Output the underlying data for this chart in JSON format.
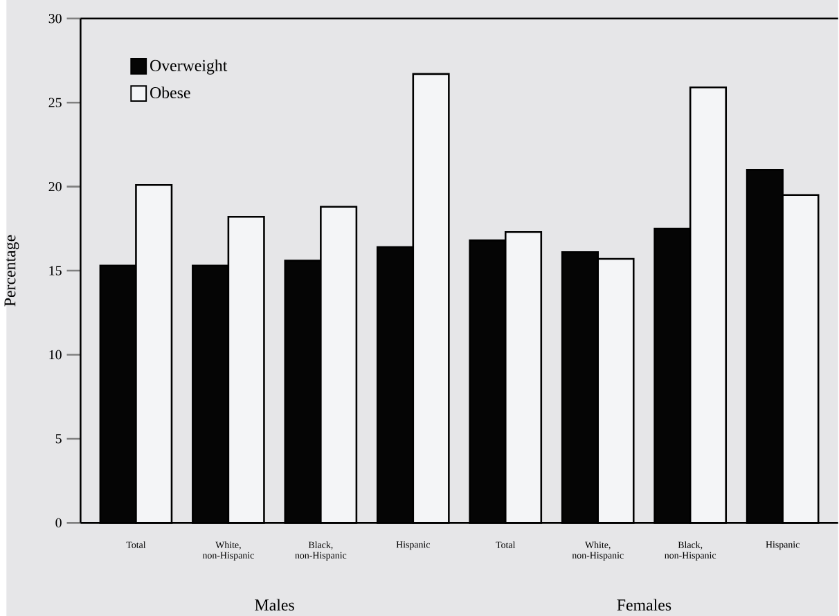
{
  "chart_data": {
    "type": "bar",
    "ylabel": "Percentage",
    "categories": [
      "Total",
      "White, non-Hispanic",
      "Black, non-Hispanic",
      "Hispanic",
      "Total",
      "White, non-Hispanic",
      "Black, non-Hispanic",
      "Hispanic"
    ],
    "series": [
      {
        "name": "Overweight",
        "color": "#050505",
        "values": [
          15.3,
          15.3,
          15.6,
          16.4,
          16.8,
          16.1,
          17.5,
          21.0
        ]
      },
      {
        "name": "Obese",
        "color": "#f4f5f7",
        "values": [
          20.1,
          18.2,
          18.8,
          26.7,
          17.3,
          15.7,
          25.9,
          19.5
        ]
      }
    ],
    "annotations": [
      "Males",
      "Females"
    ],
    "ylim": [
      0,
      30
    ],
    "yticks": [
      0,
      5,
      10,
      15,
      20,
      25,
      30
    ],
    "grid": false,
    "legend": "top left"
  }
}
